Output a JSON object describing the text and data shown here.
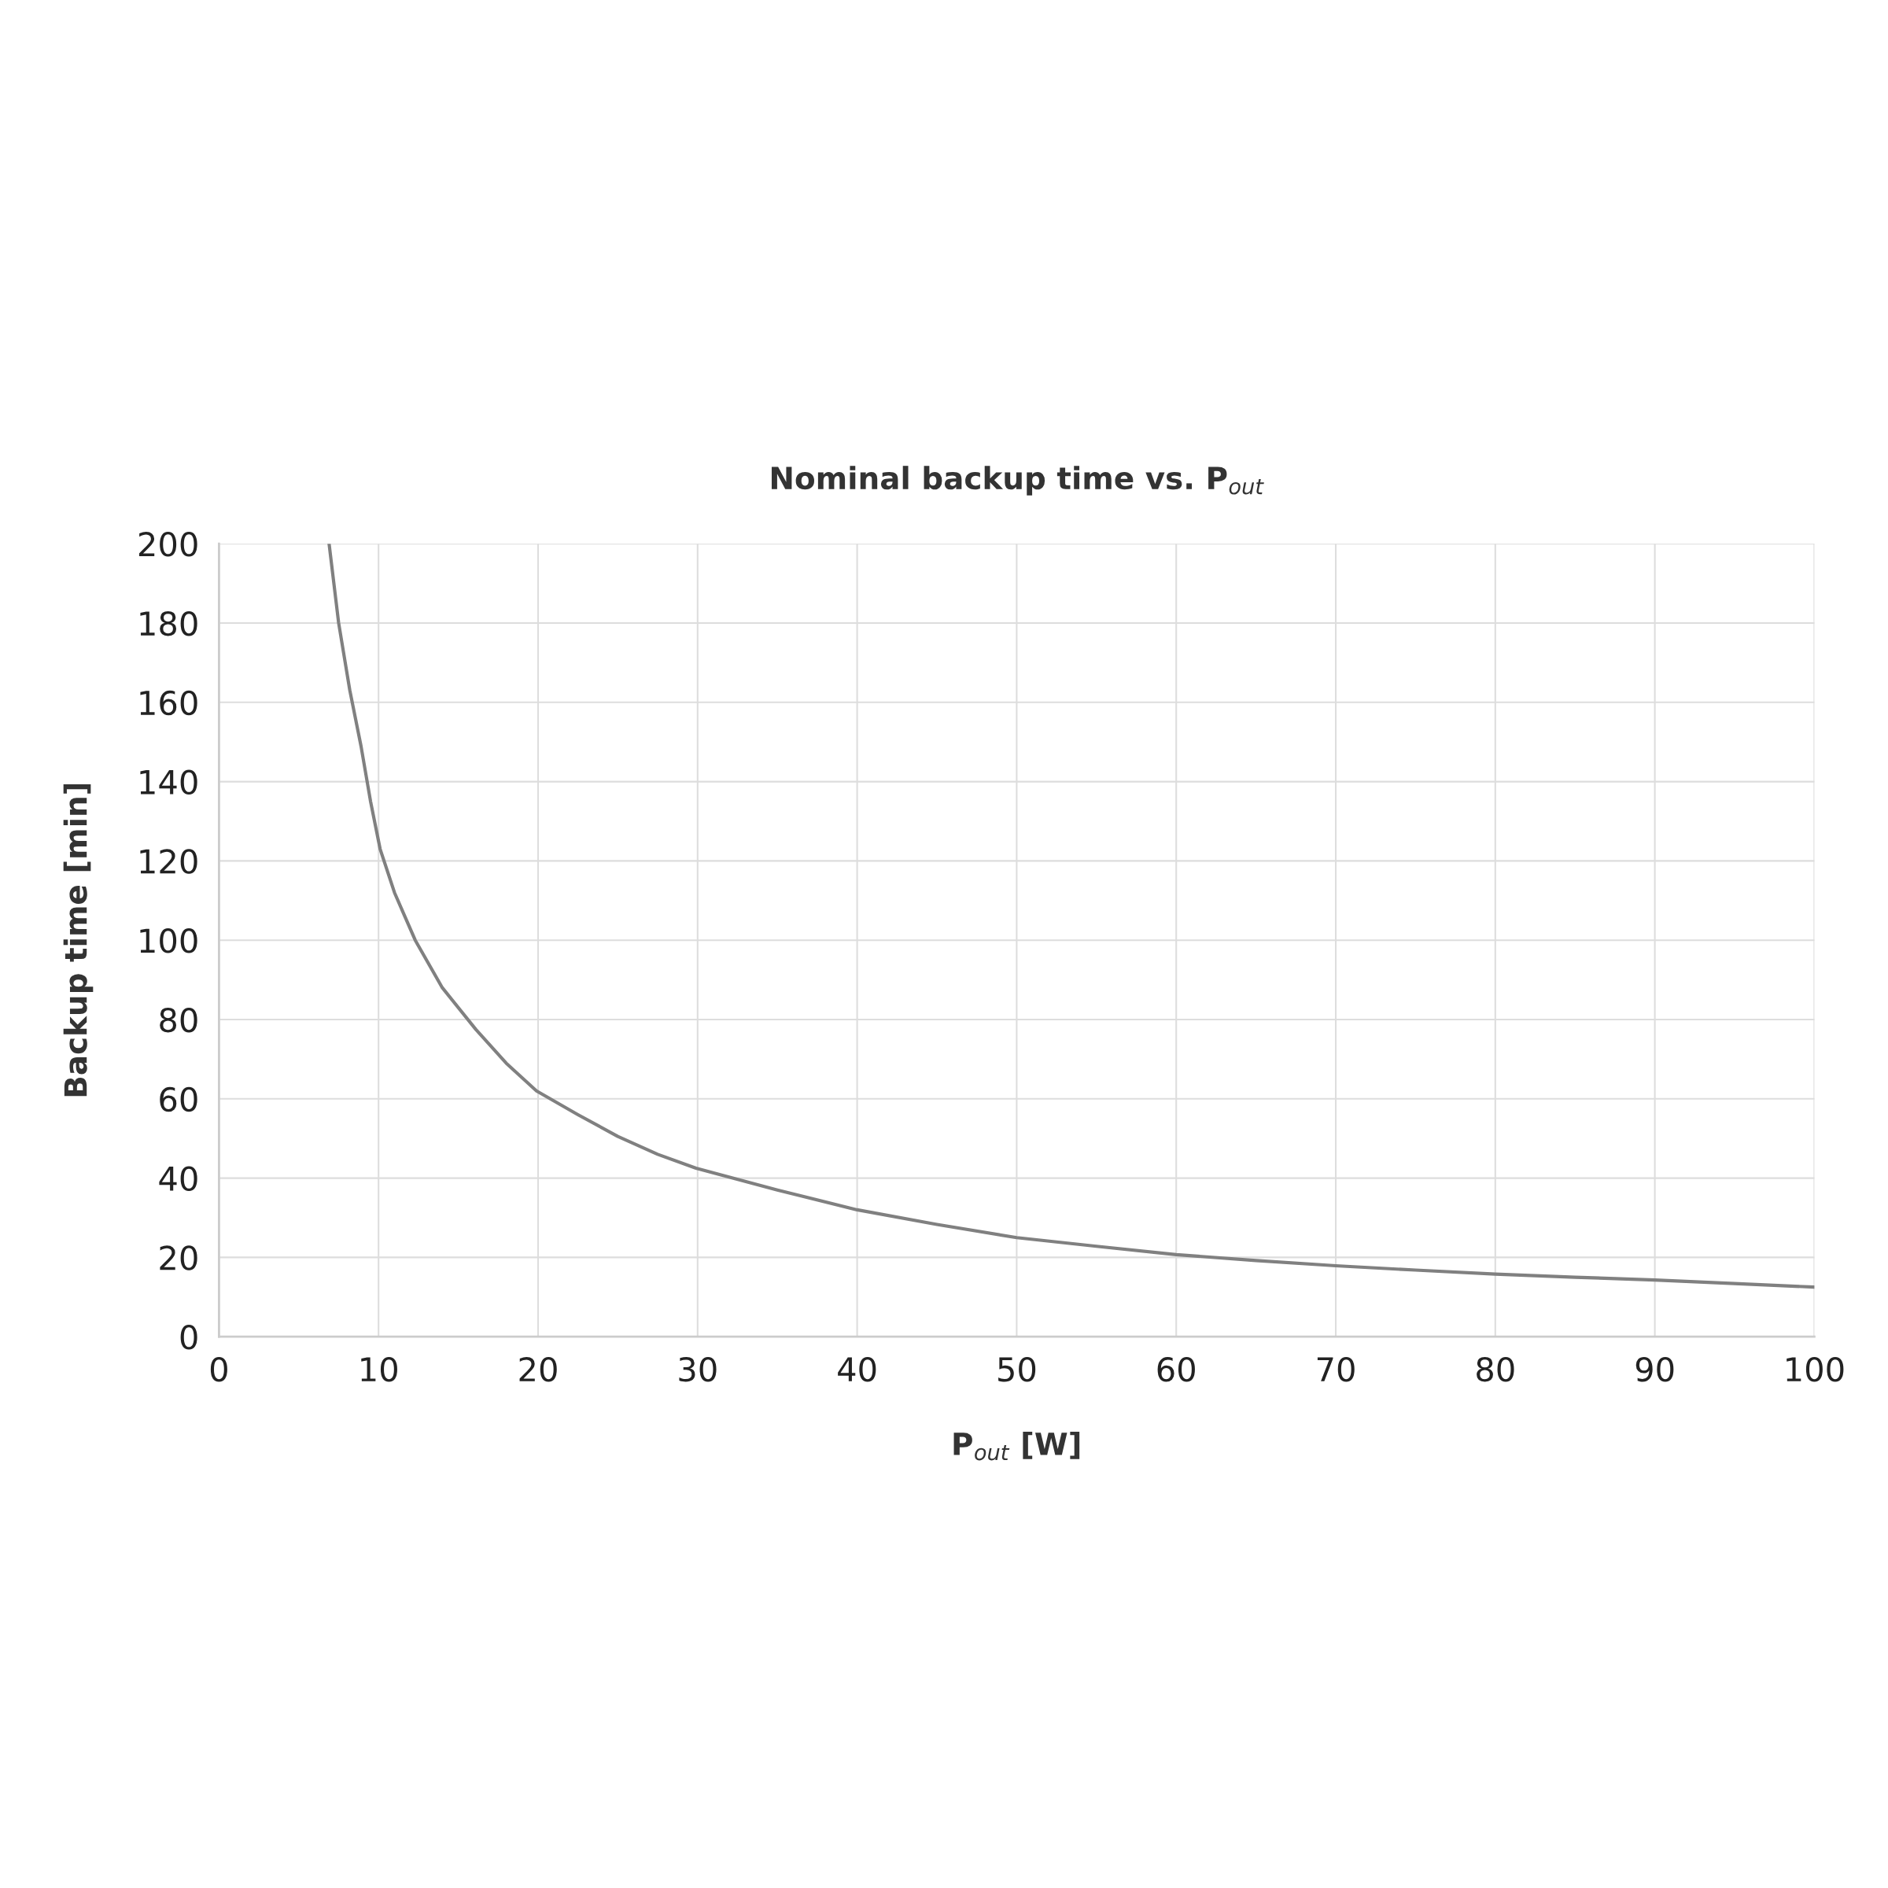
{
  "chart_data": {
    "type": "line",
    "title": "Nominal backup time vs. P$_{out}$",
    "xlabel": "P$_{out}$ [W]",
    "ylabel": "Backup time [min]",
    "x": [
      6.9,
      7.5,
      8.2,
      8.9,
      9.5,
      10.1,
      11,
      12.3,
      14,
      16.1,
      18,
      19.9,
      22.5,
      25,
      27.5,
      29.9,
      35,
      40,
      45,
      50,
      55,
      60,
      65,
      70,
      75,
      80,
      85,
      90,
      95,
      100
    ],
    "series": [
      {
        "color": "#808080",
        "values": [
          200,
          180,
          163,
          149,
          135,
          123,
          112,
          100,
          88,
          77.5,
          69,
          62,
          56,
          50.5,
          46,
          42.5,
          37,
          32,
          28.3,
          25,
          22.8,
          20.7,
          19.2,
          17.9,
          16.8,
          15.8,
          15,
          14.3,
          13.4,
          12.5
        ]
      }
    ],
    "xlim": [
      0,
      100
    ],
    "ylim": [
      0,
      200
    ],
    "xticks": [
      0,
      10,
      20,
      30,
      40,
      50,
      60,
      70,
      80,
      90,
      100
    ],
    "yticks": [
      0,
      20,
      40,
      60,
      80,
      100,
      120,
      140,
      160,
      180,
      200
    ],
    "grid": true,
    "marker": "none",
    "line_style": "solid"
  }
}
